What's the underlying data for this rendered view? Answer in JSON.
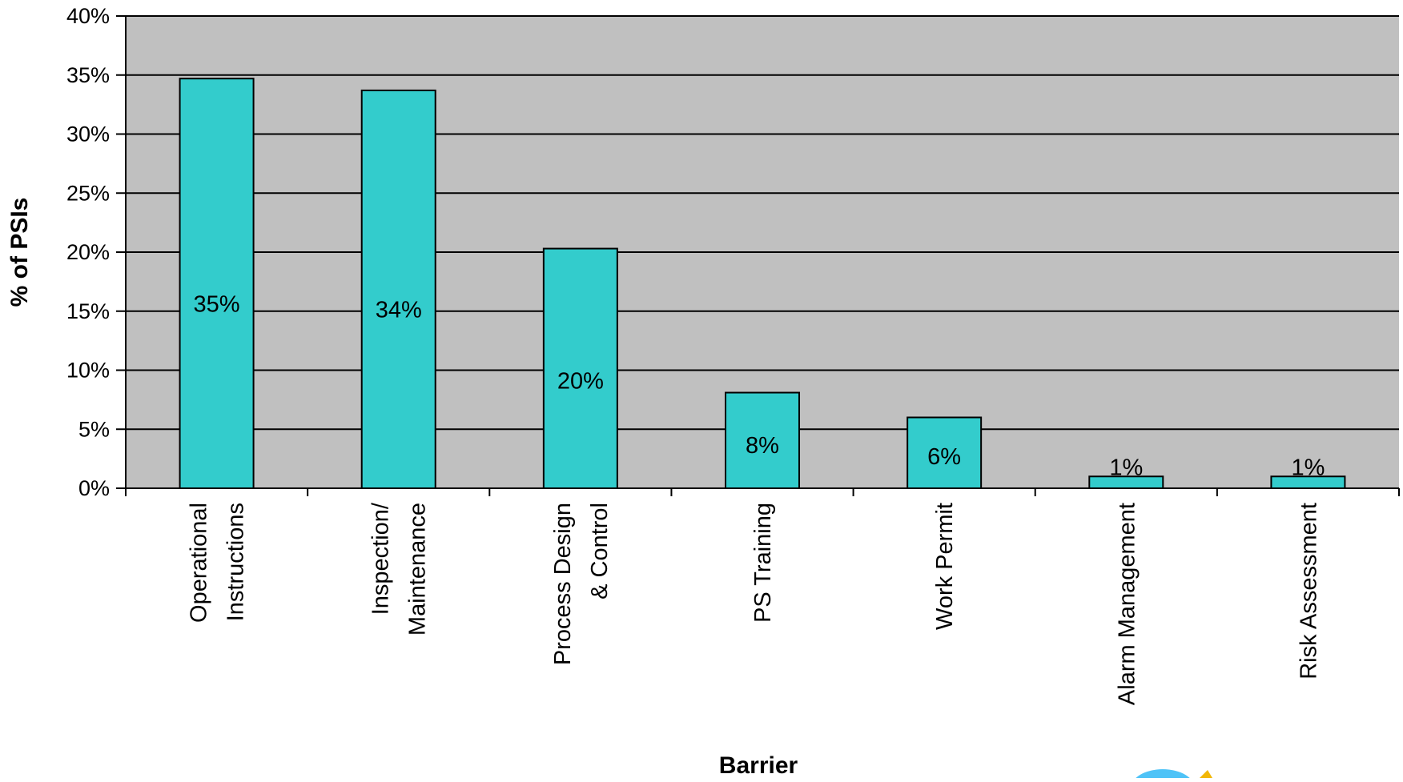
{
  "chart_data": {
    "type": "bar",
    "xlabel": "Barrier",
    "ylabel": "% of PSIs",
    "ylim": [
      0,
      40
    ],
    "y_ticks": [
      0,
      5,
      10,
      15,
      20,
      25,
      30,
      35,
      40
    ],
    "y_tick_labels": [
      "0%",
      "5%",
      "10%",
      "15%",
      "20%",
      "25%",
      "30%",
      "35%",
      "40%"
    ],
    "grid": true,
    "legend": "none",
    "categories": [
      [
        "Operational",
        "Instructions"
      ],
      [
        "Inspection/",
        "Maintenance"
      ],
      [
        "Process Design",
        "& Control"
      ],
      [
        "PS Training"
      ],
      [
        "Work Permit"
      ],
      [
        "Alarm Management"
      ],
      [
        "Risk Assessment"
      ]
    ],
    "values": [
      34.7,
      33.7,
      20.3,
      8.1,
      6.0,
      1.0,
      1.0
    ],
    "data_labels": [
      "35%",
      "34%",
      "20%",
      "8%",
      "6%",
      "1%",
      "1%"
    ],
    "colors": {
      "bar_fill": "#33CCCC",
      "plot_background": "#C0C0C0",
      "gridline": "#000000",
      "logo_blue": "#4FC3F7",
      "logo_yellow": "#F2B705"
    }
  }
}
